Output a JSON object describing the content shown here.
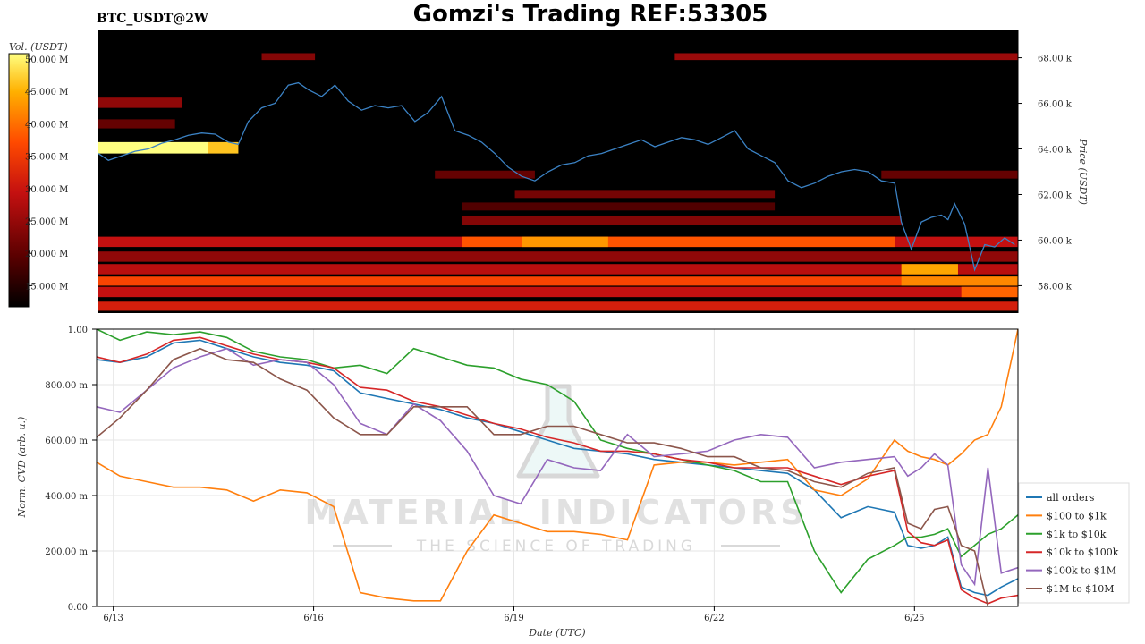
{
  "header": {
    "title": "Gomzi's Trading REF:53305",
    "pair": "BTC_USDT@2W"
  },
  "watermark": {
    "brand": "MATERIAL INDICATORS",
    "tagline": "THE SCIENCE OF TRADING"
  },
  "chart_data": [
    {
      "type": "heatmap",
      "title": "",
      "colorbar": {
        "label": "Vol. (USDT)",
        "ticks": [
          "50.000 M",
          "45.000 M",
          "40.000 M",
          "35.000 M",
          "30.000 M",
          "25.000 M",
          "20.000 M",
          "15.000 M"
        ],
        "colors": [
          "#000000",
          "#5a0000",
          "#c41010",
          "#ff4a00",
          "#ffb000",
          "#ffff80"
        ]
      },
      "ylabel": "Price (USDT)",
      "ylim": [
        56800,
        69200
      ],
      "y_ticks": [
        {
          "value": 58000,
          "label": "58.00 k"
        },
        {
          "value": 60000,
          "label": "60.00 k"
        },
        {
          "value": 62000,
          "label": "62.00 k"
        },
        {
          "value": 64000,
          "label": "64.00 k"
        },
        {
          "value": 66000,
          "label": "66.00 k"
        },
        {
          "value": 68000,
          "label": "68.00 k"
        }
      ],
      "xlim": [
        12.75,
        26.55
      ],
      "bands": [
        {
          "x0": 12.75,
          "x1": 26.55,
          "y0": 56900,
          "y1": 57300,
          "v": 0.45
        },
        {
          "x0": 12.75,
          "x1": 26.55,
          "y0": 57500,
          "y1": 57950,
          "v": 0.4
        },
        {
          "x0": 12.75,
          "x1": 26.55,
          "y0": 58000,
          "y1": 58400,
          "v": 0.58
        },
        {
          "x0": 12.75,
          "x1": 26.55,
          "y0": 58500,
          "y1": 58950,
          "v": 0.38
        },
        {
          "x0": 12.75,
          "x1": 26.55,
          "y0": 59050,
          "y1": 59500,
          "v": 0.3
        },
        {
          "x0": 12.75,
          "x1": 26.55,
          "y0": 59700,
          "y1": 60150,
          "v": 0.4
        },
        {
          "x0": 18.2,
          "x1": 24.7,
          "y0": 59700,
          "y1": 60150,
          "v": 0.62
        },
        {
          "x0": 19.1,
          "x1": 20.4,
          "y0": 59700,
          "y1": 60150,
          "v": 0.75
        },
        {
          "x0": 24.8,
          "x1": 25.65,
          "y0": 58500,
          "y1": 58950,
          "v": 0.78
        },
        {
          "x0": 24.8,
          "x1": 26.55,
          "y0": 58000,
          "y1": 58400,
          "v": 0.72
        },
        {
          "x0": 25.7,
          "x1": 26.55,
          "y0": 57500,
          "y1": 57950,
          "v": 0.65
        },
        {
          "x0": 18.2,
          "x1": 24.8,
          "y0": 60650,
          "y1": 61050,
          "v": 0.28
        },
        {
          "x0": 19.0,
          "x1": 22.9,
          "y0": 61850,
          "y1": 62200,
          "v": 0.25
        },
        {
          "x0": 18.2,
          "x1": 22.9,
          "y0": 61300,
          "y1": 61650,
          "v": 0.18
        },
        {
          "x0": 17.8,
          "x1": 19.3,
          "y0": 62700,
          "y1": 63050,
          "v": 0.22
        },
        {
          "x0": 21.4,
          "x1": 26.55,
          "y0": 67900,
          "y1": 68200,
          "v": 0.32
        },
        {
          "x0": 12.75,
          "x1": 14.4,
          "y0": 63800,
          "y1": 64300,
          "v": 1.0
        },
        {
          "x0": 14.4,
          "x1": 14.85,
          "y0": 63800,
          "y1": 64300,
          "v": 0.85
        },
        {
          "x0": 12.75,
          "x1": 14.0,
          "y0": 65800,
          "y1": 66250,
          "v": 0.3
        },
        {
          "x0": 12.75,
          "x1": 13.9,
          "y0": 64900,
          "y1": 65300,
          "v": 0.22
        },
        {
          "x0": 15.2,
          "x1": 16.0,
          "y0": 67900,
          "y1": 68200,
          "v": 0.28
        },
        {
          "x0": 24.5,
          "x1": 26.55,
          "y0": 62700,
          "y1": 63050,
          "v": 0.22
        }
      ],
      "price_series": {
        "color": "#3b82c4",
        "x": [
          12.75,
          12.9,
          13.1,
          13.3,
          13.5,
          13.7,
          13.9,
          14.1,
          14.3,
          14.5,
          14.7,
          14.85,
          15.0,
          15.2,
          15.4,
          15.6,
          15.75,
          15.9,
          16.1,
          16.3,
          16.5,
          16.7,
          16.9,
          17.1,
          17.3,
          17.5,
          17.7,
          17.9,
          18.1,
          18.3,
          18.5,
          18.7,
          18.9,
          19.1,
          19.3,
          19.5,
          19.7,
          19.9,
          20.1,
          20.3,
          20.5,
          20.7,
          20.9,
          21.1,
          21.3,
          21.5,
          21.7,
          21.9,
          22.1,
          22.3,
          22.5,
          22.7,
          22.9,
          23.1,
          23.3,
          23.5,
          23.7,
          23.9,
          24.1,
          24.3,
          24.5,
          24.7,
          24.8,
          24.95,
          25.1,
          25.25,
          25.4,
          25.5,
          25.6,
          25.75,
          25.9,
          26.05,
          26.2,
          26.35,
          26.5
        ],
        "y": [
          63800,
          63500,
          63700,
          63900,
          64000,
          64250,
          64400,
          64600,
          64700,
          64650,
          64300,
          64200,
          65200,
          65800,
          66000,
          66800,
          66900,
          66600,
          66300,
          66800,
          66100,
          65700,
          65900,
          65800,
          65900,
          65200,
          65600,
          66300,
          64800,
          64600,
          64300,
          63800,
          63200,
          62800,
          62600,
          63000,
          63300,
          63400,
          63700,
          63800,
          64000,
          64200,
          64400,
          64100,
          64300,
          64500,
          64400,
          64200,
          64500,
          64800,
          64000,
          63700,
          63400,
          62600,
          62300,
          62500,
          62800,
          63000,
          63100,
          63000,
          62600,
          62500,
          60800,
          59600,
          60800,
          61000,
          61100,
          60900,
          61600,
          60700,
          58700,
          59800,
          59700,
          60100,
          59800
        ]
      }
    },
    {
      "type": "line",
      "title": "",
      "xlabel": "Date (UTC)",
      "ylabel": "Norm. CVD (arb. u.)",
      "ylim": [
        0,
        1
      ],
      "xlim": [
        12.75,
        26.55
      ],
      "x_ticks": [
        {
          "value": 13,
          "label": "6/13"
        },
        {
          "value": 16,
          "label": "6/16"
        },
        {
          "value": 19,
          "label": "6/19"
        },
        {
          "value": 22,
          "label": "6/22"
        },
        {
          "value": 25,
          "label": "6/25"
        }
      ],
      "y_ticks": [
        {
          "value": 0,
          "label": "0.00"
        },
        {
          "value": 0.2,
          "label": "200.00 m"
        },
        {
          "value": 0.4,
          "label": "400.00 m"
        },
        {
          "value": 0.6,
          "label": "600.00 m"
        },
        {
          "value": 0.8,
          "label": "800.00 m"
        },
        {
          "value": 1,
          "label": "1.00"
        }
      ],
      "legend_position": "lower-right",
      "x": [
        12.75,
        13.1,
        13.5,
        13.9,
        14.3,
        14.7,
        15.1,
        15.5,
        15.9,
        16.3,
        16.7,
        17.1,
        17.5,
        17.9,
        18.3,
        18.7,
        19.1,
        19.5,
        19.9,
        20.3,
        20.7,
        21.1,
        21.5,
        21.9,
        22.3,
        22.7,
        23.1,
        23.5,
        23.9,
        24.3,
        24.7,
        24.9,
        25.1,
        25.3,
        25.5,
        25.7,
        25.9,
        26.1,
        26.3,
        26.55
      ],
      "series": [
        {
          "name": "all orders",
          "color": "#1f77b4",
          "values": [
            0.89,
            0.88,
            0.9,
            0.95,
            0.96,
            0.93,
            0.9,
            0.88,
            0.87,
            0.85,
            0.77,
            0.75,
            0.73,
            0.71,
            0.68,
            0.66,
            0.63,
            0.6,
            0.57,
            0.56,
            0.55,
            0.53,
            0.52,
            0.51,
            0.5,
            0.49,
            0.48,
            0.42,
            0.32,
            0.36,
            0.34,
            0.22,
            0.21,
            0.22,
            0.25,
            0.07,
            0.05,
            0.04,
            0.07,
            0.1
          ]
        },
        {
          "name": "$100 to $1k",
          "color": "#ff7f0e",
          "values": [
            0.52,
            0.47,
            0.45,
            0.43,
            0.43,
            0.42,
            0.38,
            0.42,
            0.41,
            0.36,
            0.05,
            0.03,
            0.02,
            0.02,
            0.2,
            0.33,
            0.3,
            0.27,
            0.27,
            0.26,
            0.24,
            0.51,
            0.52,
            0.52,
            0.51,
            0.52,
            0.53,
            0.42,
            0.4,
            0.46,
            0.6,
            0.56,
            0.54,
            0.53,
            0.51,
            0.55,
            0.6,
            0.62,
            0.72,
            1.0
          ]
        },
        {
          "name": "$1k to $10k",
          "color": "#2ca02c",
          "values": [
            1.0,
            0.96,
            0.99,
            0.98,
            0.99,
            0.97,
            0.92,
            0.9,
            0.89,
            0.86,
            0.87,
            0.84,
            0.93,
            0.9,
            0.87,
            0.86,
            0.82,
            0.8,
            0.74,
            0.6,
            0.57,
            0.55,
            0.53,
            0.51,
            0.49,
            0.45,
            0.45,
            0.2,
            0.05,
            0.17,
            0.22,
            0.25,
            0.25,
            0.26,
            0.28,
            0.18,
            0.22,
            0.26,
            0.28,
            0.33
          ]
        },
        {
          "name": "$10k to $100k",
          "color": "#d62728",
          "values": [
            0.9,
            0.88,
            0.91,
            0.96,
            0.97,
            0.94,
            0.91,
            0.89,
            0.88,
            0.86,
            0.79,
            0.78,
            0.74,
            0.72,
            0.69,
            0.66,
            0.64,
            0.61,
            0.59,
            0.56,
            0.56,
            0.55,
            0.53,
            0.52,
            0.5,
            0.5,
            0.5,
            0.47,
            0.44,
            0.47,
            0.49,
            0.27,
            0.23,
            0.22,
            0.24,
            0.06,
            0.03,
            0.01,
            0.03,
            0.04
          ]
        },
        {
          "name": "$100k to $1M",
          "color": "#9467bd",
          "values": [
            0.72,
            0.7,
            0.78,
            0.86,
            0.9,
            0.93,
            0.87,
            0.89,
            0.88,
            0.8,
            0.66,
            0.62,
            0.73,
            0.67,
            0.56,
            0.4,
            0.37,
            0.53,
            0.5,
            0.49,
            0.62,
            0.54,
            0.55,
            0.56,
            0.6,
            0.62,
            0.61,
            0.5,
            0.52,
            0.53,
            0.54,
            0.47,
            0.5,
            0.55,
            0.51,
            0.15,
            0.08,
            0.5,
            0.12,
            0.14
          ]
        },
        {
          "name": "$1M to $10M",
          "color": "#8c564b",
          "values": [
            0.61,
            0.68,
            0.78,
            0.89,
            0.93,
            0.89,
            0.88,
            0.82,
            0.78,
            0.68,
            0.62,
            0.62,
            0.72,
            0.72,
            0.72,
            0.62,
            0.62,
            0.65,
            0.65,
            0.62,
            0.59,
            0.59,
            0.57,
            0.54,
            0.54,
            0.5,
            0.49,
            0.45,
            0.43,
            0.48,
            0.5,
            0.3,
            0.28,
            0.35,
            0.36,
            0.22,
            0.2,
            0.0,
            0.0,
            0.0
          ]
        }
      ]
    }
  ]
}
